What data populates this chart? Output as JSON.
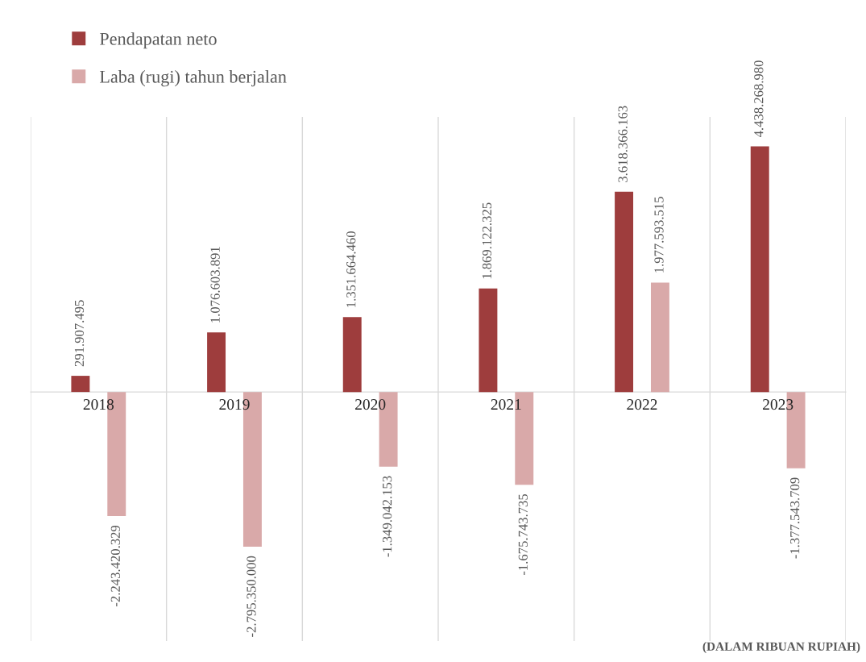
{
  "chart_data": {
    "type": "bar",
    "categories": [
      "2018",
      "2019",
      "2020",
      "2021",
      "2022",
      "2023"
    ],
    "series": [
      {
        "name": "Pendapatan neto",
        "color": "#9e3d3d",
        "values": [
          291907495,
          1076603891,
          1351664460,
          1869122325,
          3618366163,
          4438268980
        ],
        "value_labels": [
          "291.907.495",
          "1.076.603.891",
          "1.351.664.460",
          "1.869.122.325",
          "3.618.366.163",
          "4.438.268.980"
        ]
      },
      {
        "name": "Laba (rugi) tahun berjalan",
        "color": "#d9a9a9",
        "values": [
          -2243420329,
          -2795350000,
          -1349042153,
          -1675743735,
          1977593515,
          -1377543709
        ],
        "value_labels": [
          "-2.243.420.329",
          "-2.795.350.000",
          "-1.349.042.153",
          "-1.675.743.735",
          "1.977.593.515",
          "-1.377.543.709"
        ]
      }
    ],
    "ylim": [
      -4500000000,
      4970000000
    ],
    "grid": "x",
    "legend": "top left",
    "annotations": [
      "(DALAM RIBUAN RUPIAH)"
    ]
  }
}
